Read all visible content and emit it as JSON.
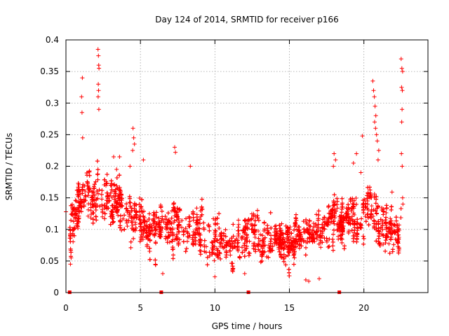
{
  "chart_data": {
    "type": "scatter",
    "title": "Day 124 of 2014, SRMTID for receiver p166",
    "xlabel": "GPS time / hours",
    "ylabel": "SRMTID / TECUs",
    "xlim": [
      0,
      24.3
    ],
    "ylim": [
      0,
      0.4
    ],
    "xticks": [
      0,
      5,
      10,
      15,
      20
    ],
    "yticks": [
      0,
      0.05,
      0.1,
      0.15,
      0.2,
      0.25,
      0.3,
      0.35,
      0.4
    ],
    "xtick_labels": [
      "0",
      "5",
      "10",
      "15",
      "20"
    ],
    "ytick_labels": [
      "0",
      "0.05",
      "0.1",
      "0.15",
      "0.2",
      "0.25",
      "0.3",
      "0.35",
      "0.4"
    ],
    "grid": true,
    "marker": "+",
    "color": "#ff0000",
    "series": [
      {
        "name": "SRMTID",
        "trend": {
          "x": [
            0.2,
            0.5,
            1.0,
            1.5,
            2.0,
            2.5,
            3.0,
            3.5,
            4.0,
            4.5,
            5.0,
            5.5,
            6.0,
            6.5,
            7.0,
            7.5,
            8.0,
            8.5,
            9.0,
            9.5,
            10.0,
            10.5,
            11.0,
            11.5,
            12.0,
            12.5,
            13.0,
            13.5,
            14.0,
            14.5,
            15.0,
            15.5,
            16.0,
            16.5,
            17.0,
            17.5,
            18.0,
            18.5,
            19.0,
            19.5,
            20.0,
            20.5,
            21.0,
            21.5,
            22.0,
            22.5
          ],
          "y": [
            0.08,
            0.12,
            0.15,
            0.16,
            0.16,
            0.15,
            0.14,
            0.15,
            0.13,
            0.12,
            0.11,
            0.1,
            0.11,
            0.11,
            0.1,
            0.1,
            0.1,
            0.1,
            0.09,
            0.09,
            0.08,
            0.08,
            0.08,
            0.08,
            0.09,
            0.1,
            0.09,
            0.08,
            0.08,
            0.08,
            0.08,
            0.09,
            0.09,
            0.1,
            0.1,
            0.11,
            0.11,
            0.11,
            0.12,
            0.12,
            0.13,
            0.13,
            0.11,
            0.1,
            0.1,
            0.11
          ],
          "spread": 0.035
        },
        "points": [
          {
            "x": 2.15,
            "y": 0.385
          },
          {
            "x": 2.18,
            "y": 0.375
          },
          {
            "x": 2.2,
            "y": 0.36
          },
          {
            "x": 2.22,
            "y": 0.355
          },
          {
            "x": 2.17,
            "y": 0.33
          },
          {
            "x": 2.19,
            "y": 0.32
          },
          {
            "x": 2.16,
            "y": 0.31
          },
          {
            "x": 2.21,
            "y": 0.29
          },
          {
            "x": 1.1,
            "y": 0.34
          },
          {
            "x": 1.05,
            "y": 0.31
          },
          {
            "x": 1.08,
            "y": 0.285
          },
          {
            "x": 1.12,
            "y": 0.245
          },
          {
            "x": 4.5,
            "y": 0.26
          },
          {
            "x": 4.55,
            "y": 0.245
          },
          {
            "x": 4.6,
            "y": 0.235
          },
          {
            "x": 4.48,
            "y": 0.225
          },
          {
            "x": 20.6,
            "y": 0.335
          },
          {
            "x": 20.65,
            "y": 0.32
          },
          {
            "x": 20.7,
            "y": 0.31
          },
          {
            "x": 20.75,
            "y": 0.295
          },
          {
            "x": 20.8,
            "y": 0.28
          },
          {
            "x": 20.72,
            "y": 0.27
          },
          {
            "x": 20.78,
            "y": 0.26
          },
          {
            "x": 20.85,
            "y": 0.25
          },
          {
            "x": 20.9,
            "y": 0.24
          },
          {
            "x": 21.0,
            "y": 0.225
          },
          {
            "x": 19.9,
            "y": 0.248
          },
          {
            "x": 20.95,
            "y": 0.21
          },
          {
            "x": 22.5,
            "y": 0.37
          },
          {
            "x": 22.55,
            "y": 0.355
          },
          {
            "x": 22.6,
            "y": 0.35
          },
          {
            "x": 22.53,
            "y": 0.325
          },
          {
            "x": 22.58,
            "y": 0.32
          },
          {
            "x": 22.56,
            "y": 0.29
          },
          {
            "x": 22.54,
            "y": 0.27
          },
          {
            "x": 22.52,
            "y": 0.22
          },
          {
            "x": 22.57,
            "y": 0.2
          },
          {
            "x": 22.6,
            "y": 0.15
          },
          {
            "x": 22.62,
            "y": 0.14
          },
          {
            "x": 0.0,
            "y": 0.128
          },
          {
            "x": 0.3,
            "y": 0.045
          },
          {
            "x": 0.35,
            "y": 0.055
          },
          {
            "x": 17.0,
            "y": 0.022
          },
          {
            "x": 16.3,
            "y": 0.018
          },
          {
            "x": 16.1,
            "y": 0.02
          },
          {
            "x": 6.5,
            "y": 0.03
          },
          {
            "x": 10.0,
            "y": 0.025
          },
          {
            "x": 12.0,
            "y": 0.03
          },
          {
            "x": 3.6,
            "y": 0.215
          },
          {
            "x": 3.2,
            "y": 0.215
          },
          {
            "x": 7.3,
            "y": 0.23
          },
          {
            "x": 7.35,
            "y": 0.222
          },
          {
            "x": 8.35,
            "y": 0.2
          },
          {
            "x": 18.0,
            "y": 0.22
          },
          {
            "x": 18.1,
            "y": 0.21
          },
          {
            "x": 17.95,
            "y": 0.2
          },
          {
            "x": 19.3,
            "y": 0.205
          },
          {
            "x": 19.5,
            "y": 0.22
          },
          {
            "x": 19.8,
            "y": 0.19
          },
          {
            "x": 5.2,
            "y": 0.21
          },
          {
            "x": 4.3,
            "y": 0.2
          },
          {
            "x": 3.4,
            "y": 0.195
          }
        ]
      }
    ],
    "baseline_markers_x": [
      0.25,
      6.4,
      12.25,
      18.35
    ]
  }
}
